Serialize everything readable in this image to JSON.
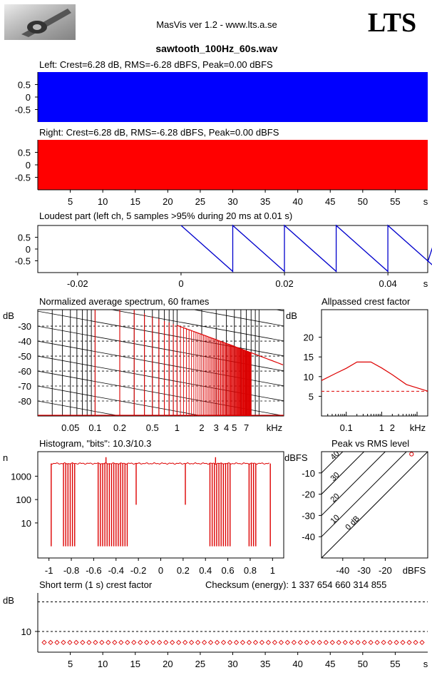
{
  "header": {
    "app_title": "MasVis ver 1.2 - www.lts.a.se",
    "brand": "LTS",
    "file_name": "sawtooth_100Hz_60s.wav",
    "logo": "microphone-photo"
  },
  "colors": {
    "left": "#0000ff",
    "right": "#ff0000",
    "plot": "#dd0000",
    "loudest": "#0000cc"
  },
  "chart_data": [
    {
      "id": "left",
      "type": "area",
      "title": "Left: Crest=6.28 dB, RMS=-6.28 dBFS, Peak=0.00 dBFS",
      "yticks": [
        "0.5",
        "0",
        "-0.5"
      ],
      "ylim": [
        -1,
        1
      ],
      "fill": "full"
    },
    {
      "id": "right",
      "type": "area",
      "title": "Right: Crest=6.28 dB, RMS=-6.28 dBFS, Peak=0.00 dBFS",
      "yticks": [
        "0.5",
        "0",
        "-0.5"
      ],
      "ylim": [
        -1,
        1
      ],
      "fill": "full",
      "xticks": [
        "5",
        "10",
        "15",
        "20",
        "25",
        "30",
        "35",
        "40",
        "45",
        "50",
        "55"
      ],
      "xunit": "s"
    },
    {
      "id": "loudest",
      "type": "line",
      "title": "Loudest part (left  ch, 5 samples >95% during 20 ms at 0.01 s)",
      "yticks": [
        "0.5",
        "0",
        "-0.5"
      ],
      "ylim": [
        -1,
        1
      ],
      "xticks": [
        "-0.02",
        "0",
        "0.02",
        "0.04"
      ],
      "xunit": "s",
      "xlim": [
        -0.0277,
        0.0477
      ],
      "series": [
        {
          "x": [
            0,
            0.01,
            0.01,
            0.02,
            0.02,
            0.03,
            0.03,
            0.04,
            0.04,
            0.05,
            0.05,
            0.0477
          ],
          "y": [
            1,
            -0.95,
            1,
            -0.95,
            1,
            -0.95,
            1,
            -0.95,
            1,
            -0.95,
            1,
            -0.55
          ]
        }
      ]
    },
    {
      "id": "spectrum",
      "type": "line",
      "title": "Normalized average spectrum, 60 frames",
      "ylabel": "dB",
      "yticks": [
        "-30",
        "-40",
        "-50",
        "-60",
        "-70",
        "-80"
      ],
      "xticks": [
        "0.05",
        "0.1",
        "0.2",
        "0.5",
        "1",
        "2",
        "3",
        "4",
        "5",
        "7"
      ],
      "xunit": "kHz",
      "xlim_khz": [
        0.02,
        20
      ],
      "ylim": [
        -90,
        -19
      ],
      "harmonics_khz": [
        0.1,
        0.2,
        0.3,
        0.4,
        0.5,
        0.6,
        0.7,
        0.8,
        0.9,
        1.0
      ],
      "harmonic_levels_db": [
        -9.5,
        -15.5,
        -19,
        -21.5,
        -23.5,
        -25,
        -26.5,
        -27.5,
        -28.5,
        -29.5
      ],
      "envelope": [
        [
          1.0,
          -29.5
        ],
        [
          2.0,
          -35.5
        ],
        [
          5.0,
          -43.5
        ],
        [
          20.0,
          -56
        ]
      ]
    },
    {
      "id": "allpassed-crest",
      "type": "line",
      "title": "Allpassed crest factor",
      "ylabel": "dB",
      "yticks": [
        "20",
        "15",
        "10",
        "5"
      ],
      "ylim": [
        0,
        27
      ],
      "xticks": [
        "0.1",
        "1",
        "2"
      ],
      "xunit": "kHz",
      "series": [
        {
          "x": [
            0.02,
            0.05,
            0.1,
            0.2,
            0.5,
            1,
            2,
            5,
            20
          ],
          "y": [
            9,
            10.8,
            12.1,
            13.7,
            13.7,
            12.2,
            10.5,
            8,
            6.3
          ]
        }
      ],
      "reference_db": 6.28
    },
    {
      "id": "histogram",
      "type": "bar",
      "title": "Histogram, \"bits\": 10.3/10.3",
      "ylabel": "n",
      "yticks": [
        "1000",
        "100",
        "10"
      ],
      "xticks": [
        "-1",
        "-0.8",
        "-0.6",
        "-0.4",
        "-0.2",
        "0",
        "0.2",
        "0.4",
        "0.6",
        "0.8",
        "1"
      ],
      "plateau": 3500,
      "floor": 1,
      "dips_x": [
        -0.98,
        -0.87,
        -0.85,
        -0.83,
        -0.81,
        -0.79,
        -0.77,
        -0.56,
        -0.54,
        -0.52,
        -0.5,
        -0.48,
        -0.46,
        -0.44,
        -0.42,
        -0.4,
        -0.38,
        -0.36,
        -0.34,
        -0.32,
        -0.3,
        0.44,
        0.46,
        0.48,
        0.5,
        0.52,
        0.54,
        0.56,
        0.58,
        0.6,
        0.62,
        0.79,
        0.81,
        0.83,
        0.85,
        0.98
      ],
      "small_dips": [
        {
          "x": -0.22,
          "n": 60
        },
        {
          "x": 0.22,
          "n": 60
        }
      ],
      "spikes": [
        {
          "x": -0.49,
          "n": 6500
        },
        {
          "x": 0.49,
          "n": 6500
        }
      ]
    },
    {
      "id": "peak-vs-rms",
      "type": "scatter",
      "title": "Peak vs RMS level",
      "ylabel": "dBFS",
      "yticks": [
        "-10",
        "-20",
        "-30",
        "-40"
      ],
      "xticks": [
        "-40",
        "-30",
        "-20"
      ],
      "xunit": "dBFS",
      "diagonals": [
        "0 dB",
        "10",
        "20",
        "30",
        "40"
      ],
      "points": [
        {
          "rms": -6.28,
          "peak": 0
        }
      ]
    },
    {
      "id": "short-term-crest",
      "type": "scatter",
      "title": "Short term (1 s) crest factor",
      "checksum": "Checksum (energy):  1 337 654 660 314 855",
      "ylabel": "dB",
      "yticks": [
        "10"
      ],
      "gridlines_db": [
        10,
        20
      ],
      "xticks": [
        "5",
        "10",
        "15",
        "20",
        "25",
        "30",
        "35",
        "40",
        "45",
        "50",
        "55"
      ],
      "xunit": "s",
      "crest_db": 6.28,
      "count": 60
    }
  ]
}
